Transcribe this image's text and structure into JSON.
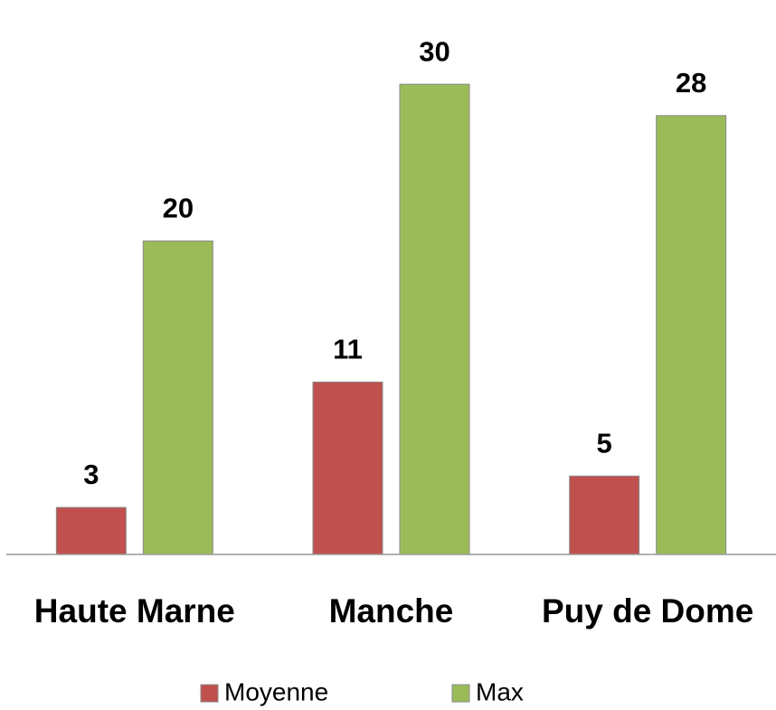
{
  "chart_data": {
    "type": "bar",
    "categories": [
      "Haute Marne",
      "Manche",
      "Puy de Dome"
    ],
    "series": [
      {
        "name": "Moyenne",
        "color": "#c0504d",
        "values": [
          3,
          11,
          5
        ]
      },
      {
        "name": "Max",
        "color": "#9bbb59",
        "values": [
          20,
          30,
          28
        ]
      }
    ],
    "ylim": [
      0,
      35
    ],
    "grid": false
  }
}
